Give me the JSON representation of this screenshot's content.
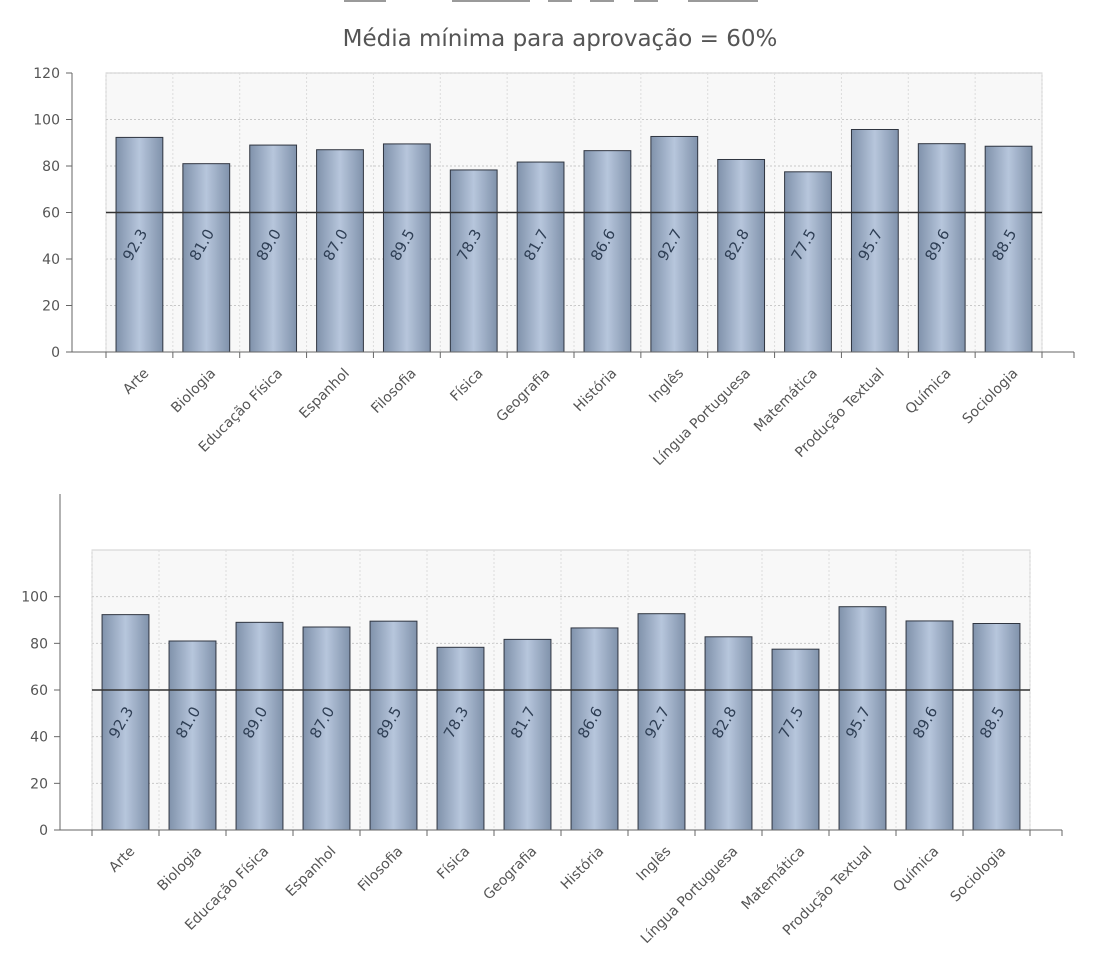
{
  "page": {
    "title": "Média mínima para aprovação = 60%"
  },
  "colors": {
    "bar_light": "#b7c6dc",
    "bar_dark": "#8092ab",
    "bar_stroke": "#2f3540",
    "grid": "#c8c8c8",
    "threshold": "#333333",
    "axis_text": "#555555"
  },
  "chart_data": [
    {
      "type": "bar",
      "title": "Média mínima para aprovação = 60%",
      "xlabel": "",
      "ylabel": "",
      "ylim": [
        0,
        120
      ],
      "yticks": [
        0,
        20,
        40,
        60,
        80,
        100,
        120
      ],
      "ytick_labels": [
        "0",
        "20",
        "40",
        "60",
        "80",
        "100",
        "120"
      ],
      "threshold": 60,
      "grid": true,
      "categories": [
        "Arte",
        "Biologia",
        "Educação Física",
        "Espanhol",
        "Filosofia",
        "Física",
        "Geografia",
        "História",
        "Inglês",
        "Língua Portuguesa",
        "Matemática",
        "Produção Textual",
        "Química",
        "Sociologia"
      ],
      "values": [
        92.3,
        81.0,
        89.0,
        87.0,
        89.5,
        78.3,
        81.7,
        86.6,
        92.7,
        82.8,
        77.5,
        95.7,
        89.6,
        88.5
      ],
      "value_labels": [
        "92.3",
        "81.0",
        "89.0",
        "87.0",
        "89.5",
        "78.3",
        "81.7",
        "86.6",
        "92.7",
        "82.8",
        "77.5",
        "95.7",
        "89.6",
        "88.5"
      ]
    },
    {
      "type": "bar",
      "title": "",
      "xlabel": "",
      "ylabel": "",
      "ylim": [
        0,
        120
      ],
      "yticks": [
        0,
        20,
        40,
        60,
        80,
        100
      ],
      "ytick_labels": [
        "0",
        "20",
        "40",
        "60",
        "80",
        "100"
      ],
      "threshold": 60,
      "grid": true,
      "categories": [
        "Arte",
        "Biologia",
        "Educação Física",
        "Espanhol",
        "Filosofia",
        "Física",
        "Geografia",
        "História",
        "Inglês",
        "Língua Portuguesa",
        "Matemática",
        "Produção Textual",
        "Química",
        "Sociologia"
      ],
      "values": [
        92.3,
        81.0,
        89.0,
        87.0,
        89.5,
        78.3,
        81.7,
        86.6,
        92.7,
        82.8,
        77.5,
        95.7,
        89.6,
        88.5
      ],
      "value_labels": [
        "92.3",
        "81.0",
        "89.0",
        "87.0",
        "89.5",
        "78.3",
        "81.7",
        "86.6",
        "92.7",
        "82.8",
        "77.5",
        "95.7",
        "89.6",
        "88.5"
      ]
    }
  ]
}
